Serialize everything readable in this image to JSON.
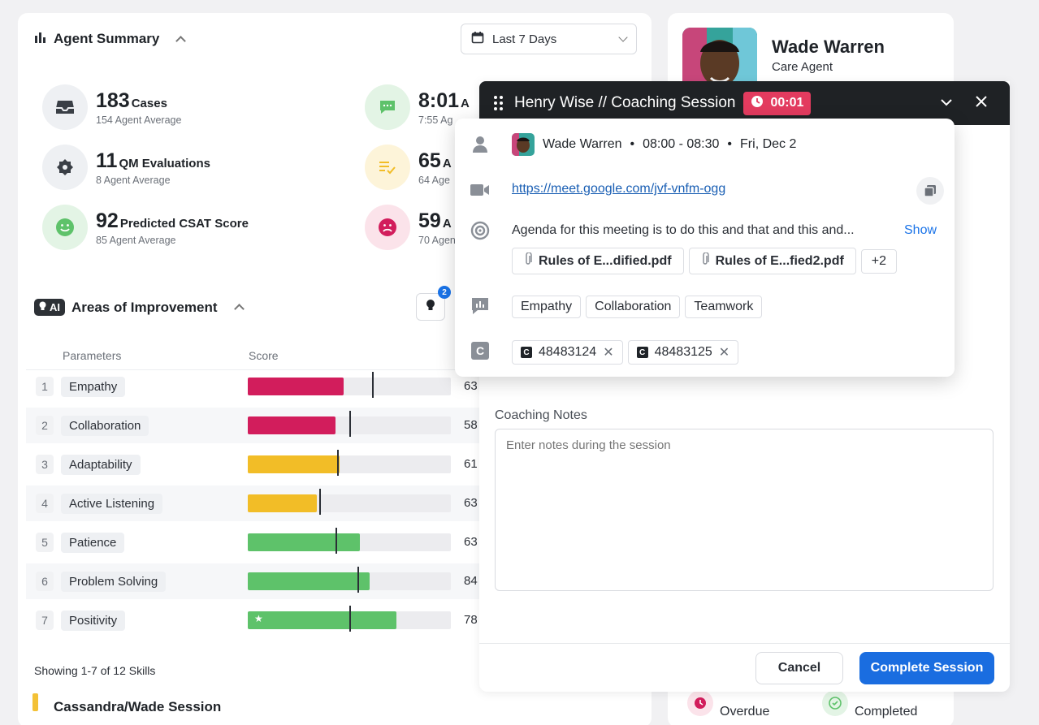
{
  "summary": {
    "title": "Agent Summary",
    "range": "Last 7 Days",
    "stats": [
      {
        "value": "183",
        "label": "Cases",
        "sub": "154 Agent Average"
      },
      {
        "value": "11",
        "label": "QM Evaluations",
        "sub": "8 Agent Average"
      },
      {
        "value": "92",
        "label": "Predicted CSAT Score",
        "sub": "85 Agent Average"
      },
      {
        "value": "8:01",
        "label": "A",
        "sub": "7:55 Ag"
      },
      {
        "value": "65",
        "label": "A",
        "sub": "64 Age"
      },
      {
        "value": "59",
        "label": "A",
        "sub": "70 Agen"
      }
    ]
  },
  "improvement": {
    "ai_label": "AI",
    "title": "Areas of Improvement",
    "badge_count": "2",
    "col_params": "Parameters",
    "col_score": "Score",
    "rows": [
      {
        "idx": "1",
        "name": "Empathy",
        "fill": 0.47,
        "marker": 0.61,
        "color": "#d21d5c",
        "score": "63"
      },
      {
        "idx": "2",
        "name": "Collaboration",
        "fill": 0.43,
        "marker": 0.5,
        "color": "#d21d5c",
        "score": "58"
      },
      {
        "idx": "3",
        "name": "Adaptability",
        "fill": 0.45,
        "marker": 0.44,
        "color": "#f2bd27",
        "score": "61"
      },
      {
        "idx": "4",
        "name": "Active Listening",
        "fill": 0.34,
        "marker": 0.35,
        "color": "#f2bd27",
        "score": "63"
      },
      {
        "idx": "5",
        "name": "Patience",
        "fill": 0.55,
        "marker": 0.43,
        "color": "#5ec26a",
        "score": "63"
      },
      {
        "idx": "6",
        "name": "Problem Solving",
        "fill": 0.6,
        "marker": 0.54,
        "color": "#5ec26a",
        "score": "84"
      },
      {
        "idx": "7",
        "name": "Positivity",
        "fill": 0.73,
        "marker": 0.5,
        "color": "#5ec26a",
        "score": "78",
        "star": "★"
      }
    ],
    "showing": "Showing 1-7 of 12 Skills",
    "session_title": "Cassandra/Wade Session"
  },
  "profile": {
    "name": "Wade Warren",
    "role": "Care Agent",
    "overdue_label": "Overdue",
    "completed_label": "Completed"
  },
  "coaching": {
    "title": "Henry Wise // Coaching Session",
    "timer": "00:01",
    "notes_label": "Coaching Notes",
    "notes_placeholder": "Enter notes during the session",
    "cancel_label": "Cancel",
    "complete_label": "Complete Session"
  },
  "meeting": {
    "person": "Wade Warren",
    "time": "08:00 - 08:30",
    "date": "Fri, Dec 2",
    "sep": "•",
    "link": "https://meet.google.com/jvf-vnfm-ogg",
    "agenda": "Agenda for this meeting is to do this and that and this and...",
    "show_label": "Show",
    "files": [
      "Rules of E...dified.pdf",
      "Rules of E...fied2.pdf"
    ],
    "more_files": "+2",
    "skills": [
      "Empathy",
      "Collaboration",
      "Teamwork"
    ],
    "cases": [
      "48483124",
      "48483125"
    ],
    "case_icon_letter": "C"
  }
}
